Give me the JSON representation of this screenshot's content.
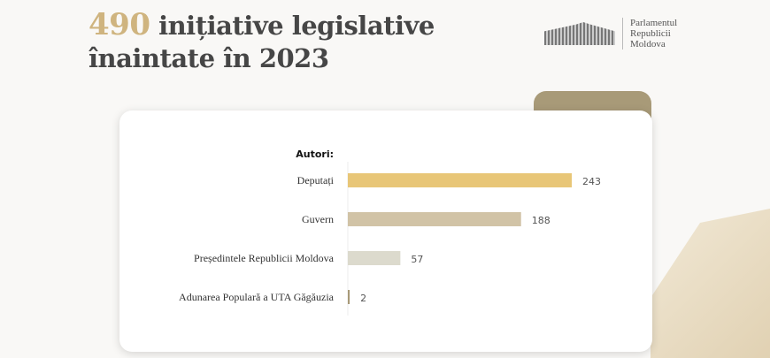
{
  "header": {
    "number": "490",
    "title_rest": " inițiative legislative",
    "title_line2": "înaintate în 2023"
  },
  "logo": {
    "lines": [
      "Parlamentul",
      "Republicii",
      "Moldova"
    ]
  },
  "chart_data": {
    "type": "bar",
    "orientation": "horizontal",
    "title": "Autori:",
    "categories": [
      "Deputați",
      "Guvern",
      "Președintele Republicii Moldova",
      "Adunarea Populară a UTA Găgăuzia"
    ],
    "values": [
      243,
      188,
      57,
      2
    ],
    "colors": [
      "#e8c677",
      "#d1c3a6",
      "#dcdacd",
      "#a89a78"
    ]
  }
}
